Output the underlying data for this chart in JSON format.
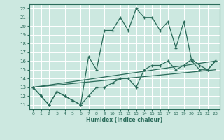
{
  "xlabel": "Humidex (Indice chaleur)",
  "xlim": [
    -0.5,
    23.5
  ],
  "ylim": [
    10.5,
    22.5
  ],
  "yticks": [
    11,
    12,
    13,
    14,
    15,
    16,
    17,
    18,
    19,
    20,
    21,
    22
  ],
  "xticks": [
    0,
    1,
    2,
    3,
    4,
    5,
    6,
    7,
    8,
    9,
    10,
    11,
    12,
    13,
    14,
    15,
    16,
    17,
    18,
    19,
    20,
    21,
    22,
    23
  ],
  "bg_color": "#cce8e0",
  "line_color": "#2a6b5a",
  "grid_color": "#ffffff",
  "lines": [
    {
      "x": [
        0,
        1,
        2,
        3,
        4,
        5,
        6,
        7,
        8,
        9,
        10,
        11,
        12,
        13,
        14,
        15,
        16,
        17,
        18,
        19,
        20,
        21,
        22,
        23
      ],
      "y": [
        13,
        12,
        11,
        12.5,
        12,
        11.5,
        11,
        16.5,
        15,
        19.5,
        19.5,
        21,
        19.5,
        22,
        21,
        21,
        19.5,
        20.5,
        17.5,
        20.5,
        16,
        15,
        15,
        16
      ],
      "marker": true
    },
    {
      "x": [
        0,
        1,
        2,
        3,
        4,
        5,
        6,
        7,
        8,
        9,
        10,
        11,
        12,
        13,
        14,
        15,
        16,
        17,
        18,
        19,
        20,
        21,
        22,
        23
      ],
      "y": [
        13,
        12,
        11,
        12.5,
        12,
        11.5,
        11,
        12,
        13,
        13,
        13.5,
        14,
        14,
        13,
        15,
        15.5,
        15.5,
        16,
        15,
        15.5,
        16.2,
        15.5,
        15,
        16
      ],
      "marker": true
    },
    {
      "x": [
        0,
        23
      ],
      "y": [
        13,
        16
      ],
      "marker": false
    },
    {
      "x": [
        0,
        23
      ],
      "y": [
        13,
        15
      ],
      "marker": false
    }
  ]
}
